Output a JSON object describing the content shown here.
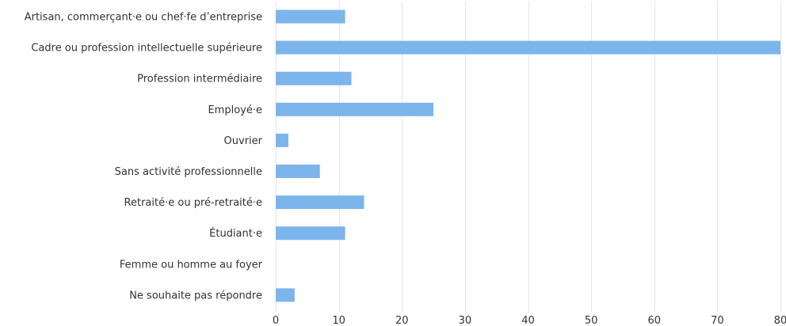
{
  "chart_data": {
    "type": "bar",
    "orientation": "horizontal",
    "categories": [
      "Artisan, commerçant·e ou chef·fe d’entreprise",
      "Cadre ou profession intellectuelle supérieure",
      "Profession intermédiaire",
      "Employé·e",
      "Ouvrier",
      "Sans activité professionnelle",
      "Retraité·e ou pré-retraité·e",
      "Étudiant·e",
      "Femme ou homme au foyer",
      "Ne souhaite pas répondre"
    ],
    "values": [
      11,
      80,
      12,
      25,
      2,
      7,
      14,
      11,
      0,
      3
    ],
    "xlim": [
      0,
      80
    ],
    "xticks": [
      0,
      10,
      20,
      30,
      40,
      50,
      60,
      70,
      80
    ],
    "grid": true,
    "legend": "none",
    "colors": {
      "bar": "#7cb5ec",
      "grid": "#e6e6e6",
      "text": "#333333"
    }
  }
}
